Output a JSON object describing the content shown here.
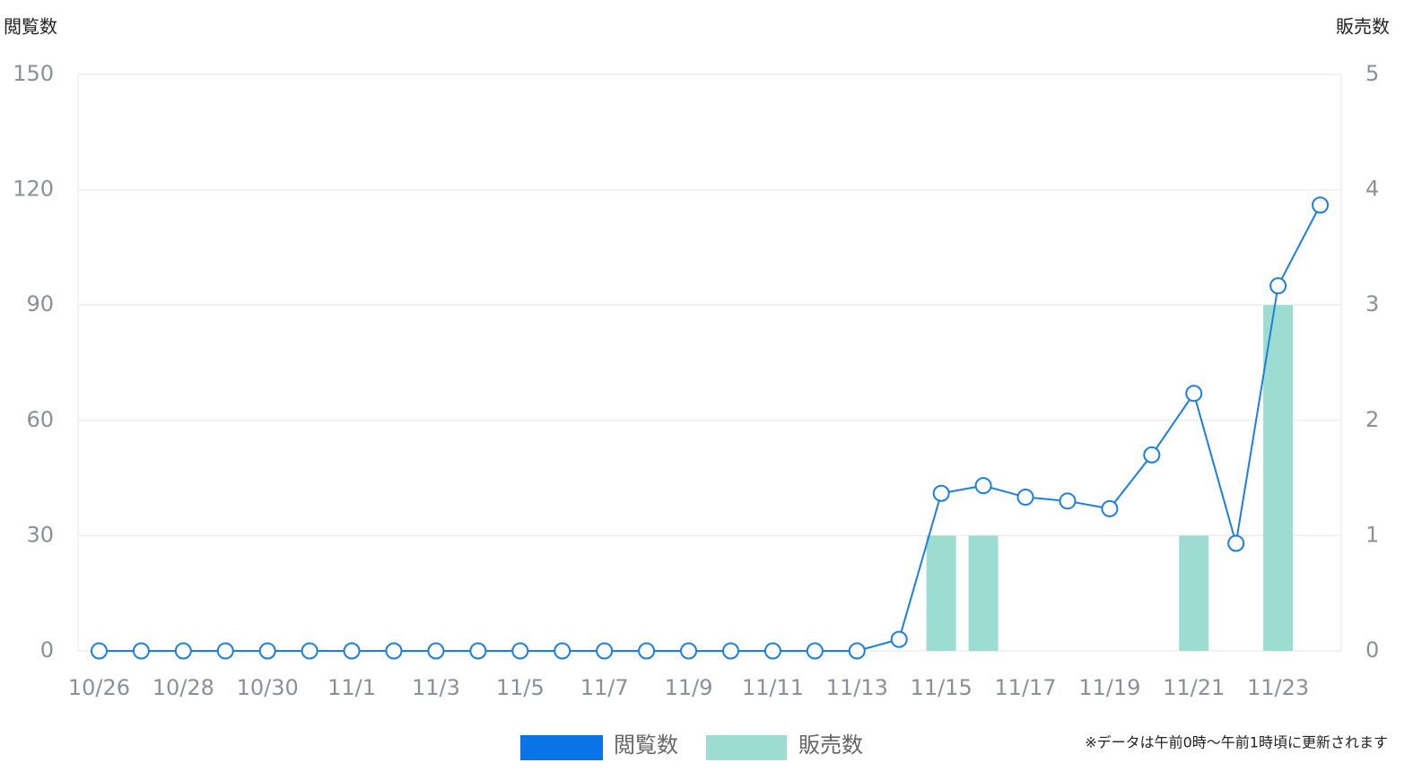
{
  "chart_data": {
    "type": "bar_line",
    "y_label": "閲覧数",
    "y2_label": "販売数",
    "note": "※データは午前0時～午前1時頃に更新されます",
    "categories": [
      "10/26",
      null,
      "10/28",
      null,
      "10/30",
      null,
      "11/1",
      null,
      "11/3",
      null,
      "11/5",
      null,
      "11/7",
      null,
      "11/9",
      null,
      "11/11",
      null,
      "11/13",
      null,
      "11/15",
      null,
      "11/17",
      null,
      "11/19",
      null,
      "11/21",
      null,
      "11/23",
      null
    ],
    "series": [
      {
        "name": "閲覧数",
        "type": "line",
        "color": "#1a7fe0",
        "legend_color": "#0a73e6",
        "values": [
          0,
          0,
          0,
          0,
          0,
          0,
          0,
          0,
          0,
          0,
          0,
          0,
          0,
          0,
          0,
          0,
          0,
          0,
          0,
          3,
          41,
          43,
          40,
          39,
          37,
          51,
          67,
          28,
          95,
          116
        ]
      },
      {
        "name": "販売数",
        "type": "bar",
        "axis": "y2",
        "color": "#9ddcd0",
        "values": [
          0,
          0,
          0,
          0,
          0,
          0,
          0,
          0,
          0,
          0,
          0,
          0,
          0,
          0,
          0,
          0,
          0,
          0,
          0,
          0,
          1,
          1,
          0,
          0,
          0,
          0,
          1,
          0,
          3,
          0
        ]
      }
    ],
    "ylim": [
      0,
      150
    ],
    "yticks": [
      0,
      30,
      60,
      90,
      120,
      150
    ],
    "y2lim": [
      0,
      5
    ],
    "y2ticks": [
      0,
      1,
      2,
      3,
      4,
      5
    ],
    "grid": true
  }
}
